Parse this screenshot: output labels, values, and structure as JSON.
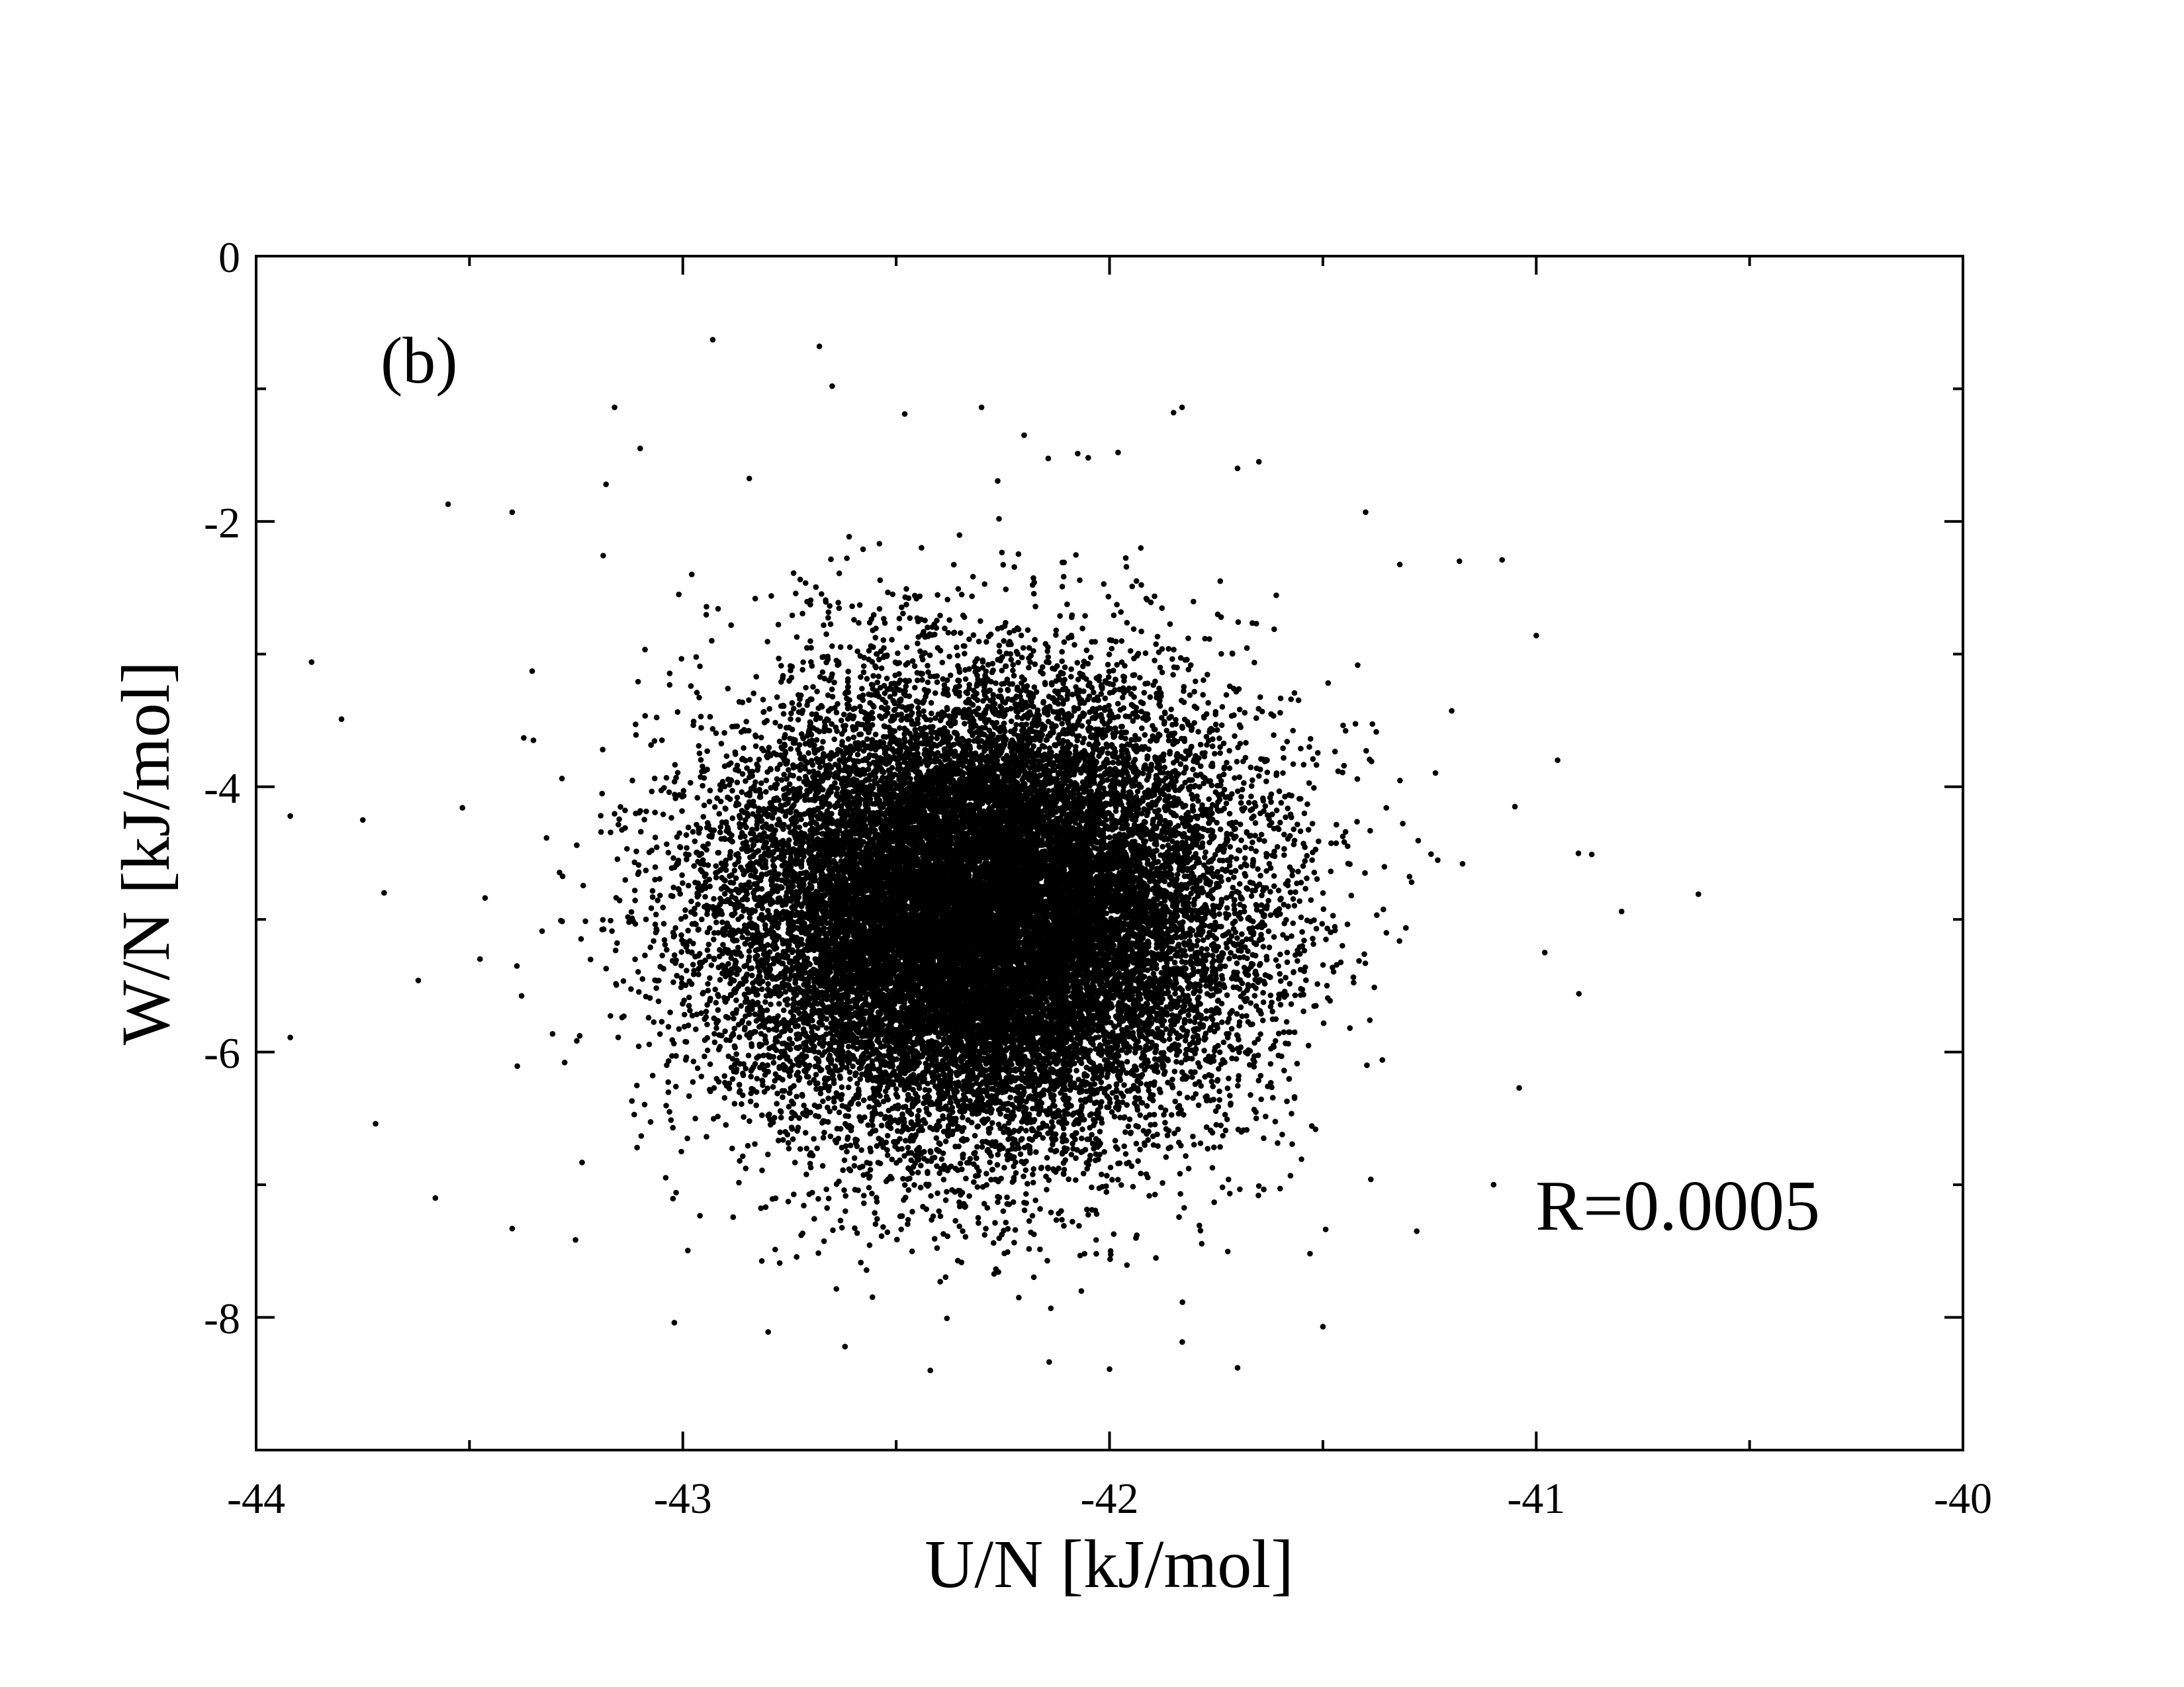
{
  "chart_data": {
    "type": "scatter",
    "panel_label": "(b)",
    "annotation": "R=0.0005",
    "xlabel": "U/N [kJ/mol]",
    "ylabel": "W/N [kJ/mol]",
    "xlim": [
      -44,
      -40
    ],
    "ylim": [
      -9,
      0
    ],
    "x_ticks": [
      -44,
      -43,
      -42,
      -41,
      -40
    ],
    "y_ticks": [
      0,
      -2,
      -4,
      -6,
      -8
    ],
    "x_tick_labels": [
      "-44",
      "-43",
      "-42",
      "-41",
      "-40"
    ],
    "y_tick_labels": [
      "0",
      "-2",
      "-4",
      "-6",
      "-8"
    ],
    "x_minor_step": 0.5,
    "y_minor_step": 1,
    "grid": false,
    "marker_color": "#000000",
    "distribution": {
      "center": [
        -42.3,
        -4.95
      ],
      "std": [
        0.3,
        0.85
      ],
      "correlation": 0.0005
    },
    "points": [
      [
        -42.93,
        -0.63
      ],
      [
        -42.68,
        -0.68
      ],
      [
        -43.16,
        -1.14
      ],
      [
        -41.83,
        -1.14
      ],
      [
        -43.87,
        -3.06
      ],
      [
        -43.8,
        -3.49
      ],
      [
        -41.0,
        -2.86
      ],
      [
        -40.62,
        -4.81
      ],
      [
        -40.8,
        -4.94
      ],
      [
        -40.87,
        -4.51
      ],
      [
        -40.9,
        -5.56
      ],
      [
        -41.04,
        -6.27
      ],
      [
        -43.92,
        -5.89
      ],
      [
        -43.92,
        -4.22
      ],
      [
        -43.72,
        -6.54
      ],
      [
        -43.58,
        -7.1
      ],
      [
        -43.4,
        -7.33
      ],
      [
        -43.02,
        -8.04
      ],
      [
        -42.8,
        -8.11
      ],
      [
        -42.62,
        -8.22
      ],
      [
        -42.42,
        -8.4
      ],
      [
        -42.0,
        -8.39
      ],
      [
        -41.7,
        -8.38
      ],
      [
        -41.5,
        -8.07
      ],
      [
        -41.28,
        -7.35
      ],
      [
        -41.1,
        -7.0
      ],
      [
        -43.55,
        -1.87
      ],
      [
        -43.4,
        -1.93
      ],
      [
        -41.4,
        -1.93
      ],
      [
        -41.18,
        -2.3
      ],
      [
        -41.08,
        -2.29
      ],
      [
        -41.65,
        -1.55
      ],
      [
        -42.05,
        -1.52
      ],
      [
        -42.3,
        -1.14
      ],
      [
        -42.48,
        -1.19
      ],
      [
        -42.65,
        -0.98
      ],
      [
        -41.98,
        -1.48
      ],
      [
        -42.2,
        -1.35
      ],
      [
        -43.1,
        -1.45
      ],
      [
        -41.85,
        -1.18
      ],
      [
        -43.18,
        -1.72
      ],
      [
        -41.7,
        -1.6
      ],
      [
        -40.95,
        -3.8
      ],
      [
        -41.05,
        -4.15
      ],
      [
        -40.98,
        -5.25
      ],
      [
        -43.62,
        -5.46
      ],
      [
        -43.7,
        -4.8
      ],
      [
        -43.75,
        -4.25
      ]
    ]
  }
}
